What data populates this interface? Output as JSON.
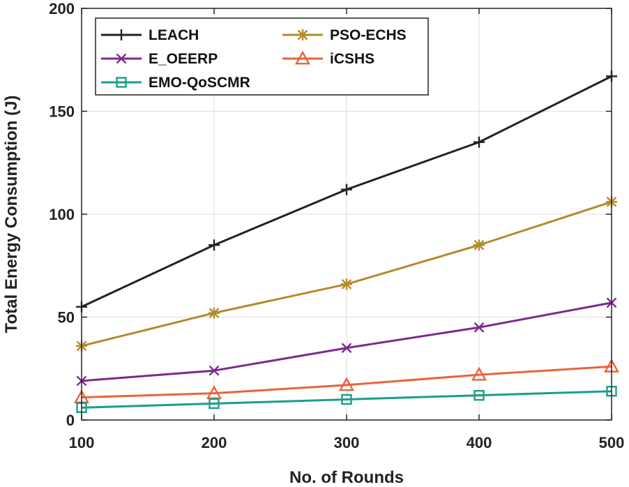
{
  "chart_data": {
    "type": "line",
    "title": "",
    "xlabel": "No. of Rounds",
    "ylabel": "Total Energy Consumption (J)",
    "x": [
      100,
      200,
      300,
      400,
      500
    ],
    "xlim": [
      100,
      500
    ],
    "ylim": [
      0,
      200
    ],
    "xticks": [
      "100",
      "200",
      "300",
      "400",
      "500"
    ],
    "yticks": [
      "0",
      "50",
      "100",
      "150",
      "200"
    ],
    "grid": true,
    "legend_position": "top-left",
    "series": [
      {
        "name": "LEACH",
        "color": "#222222",
        "marker": "plus",
        "values": [
          55,
          85,
          112,
          135,
          167
        ]
      },
      {
        "name": "PSO-ECHS",
        "color": "#B5892A",
        "marker": "asterisk",
        "values": [
          36,
          52,
          66,
          85,
          106
        ]
      },
      {
        "name": "E_OEERP",
        "color": "#7B2A8E",
        "marker": "x",
        "values": [
          19,
          24,
          35,
          45,
          57
        ]
      },
      {
        "name": "iCSHS",
        "color": "#E8643A",
        "marker": "triangle",
        "values": [
          11,
          13,
          17,
          22,
          26
        ]
      },
      {
        "name": "EMO-QoSCMR",
        "color": "#1A9E8A",
        "marker": "square",
        "values": [
          6,
          8,
          10,
          12,
          14
        ]
      }
    ]
  }
}
